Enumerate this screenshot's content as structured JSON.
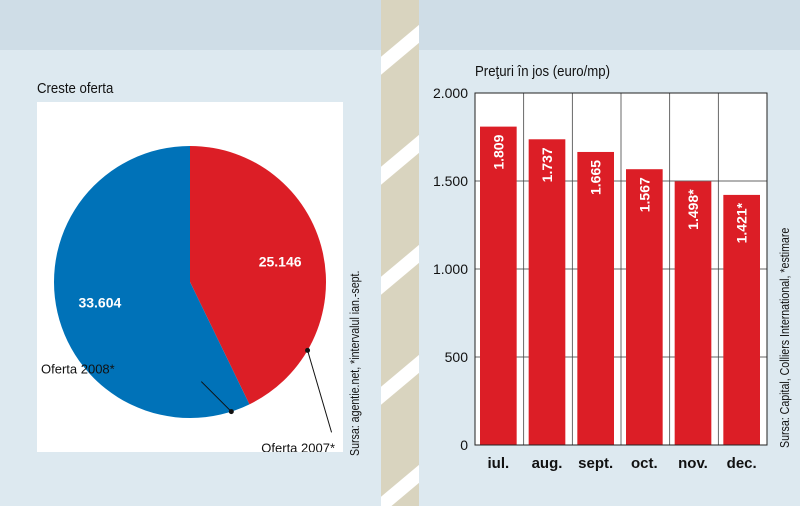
{
  "colors": {
    "red": "#dc1e26",
    "blue": "#0072b8",
    "page_bg": "#dde9f0"
  },
  "left_source": "Sursa: agentie.net, *intervalul ian.-sept.",
  "right_source": "Sursa: Capital, Colliers International, *estimare",
  "chart_data": [
    {
      "type": "pie",
      "title": "Creste oferta",
      "slices": [
        {
          "label": "Oferta 2007*",
          "value": 25146,
          "value_label": "25.146",
          "color": "#dc1e26"
        },
        {
          "label": "Oferta 2008*",
          "value": 33604,
          "value_label": "33.604",
          "color": "#0072b8"
        }
      ]
    },
    {
      "type": "bar",
      "title": "Preţuri în jos (euro/mp)",
      "categories": [
        "iul.",
        "aug.",
        "sept.",
        "oct.",
        "nov.",
        "dec."
      ],
      "values": [
        1809,
        1737,
        1665,
        1567,
        1498,
        1421
      ],
      "value_labels": [
        "1.809",
        "1.737",
        "1.665",
        "1.567",
        "1.498*",
        "1.421*"
      ],
      "ylim": [
        0,
        2000
      ],
      "yticks": [
        0,
        500,
        1000,
        1500,
        2000
      ],
      "ytick_labels": [
        "0",
        "500",
        "1.000",
        "1.500",
        "2.000"
      ],
      "grid": true,
      "color": "#dc1e26"
    }
  ]
}
